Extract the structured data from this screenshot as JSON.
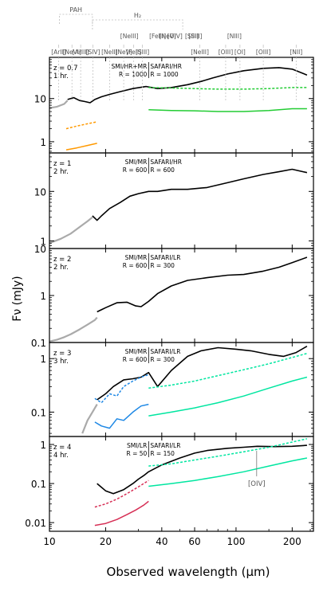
{
  "chart_data": {
    "type": "line",
    "xlabel": "Observed wavelength (μm)",
    "ylabel": "Fν (mJy)",
    "xscale": "log",
    "xlim": [
      10,
      260
    ],
    "xticks": [
      {
        "v": 10,
        "label": "10"
      },
      {
        "v": 20,
        "label": "20"
      },
      {
        "v": 40,
        "label": "40"
      },
      {
        "v": 60,
        "label": "60"
      },
      {
        "v": 100,
        "label": "100"
      },
      {
        "v": 200,
        "label": "200"
      }
    ],
    "lines_header": {
      "groups": [
        {
          "label": "PAH",
          "lines_um": [
            11.3,
            12.7,
            16.4,
            17.0
          ]
        },
        {
          "label": "H₂",
          "lines_um": [
            28.2,
            17.0,
            34.8,
            35.3,
            51.8
          ]
        }
      ],
      "row1": [
        {
          "label": "[ArII]",
          "um": 11.2
        },
        {
          "label": "[NeVI]",
          "um": 13.2
        },
        {
          "label": "[ArIII]",
          "um": 14.7
        },
        {
          "label": "[SIV]",
          "um": 17.1
        },
        {
          "label": "[NeII]",
          "um": 21.0
        },
        {
          "label": "[NeV]",
          "um": 25.0
        },
        {
          "label": "[FeII]",
          "um": 28.3
        },
        {
          "label": "[SIII]",
          "um": 31.5
        },
        {
          "label": "[NeIII]",
          "um": 64.0
        },
        {
          "label": "[OIII]",
          "um": 88.0
        },
        {
          "label": "[OI]",
          "um": 105.0
        },
        {
          "label": "[OIII]",
          "um": 140.0
        },
        {
          "label": "[NII]",
          "um": 210.0
        }
      ],
      "row2": [
        {
          "label": "[NeIII]",
          "um": 26.8
        },
        {
          "label": "[FeIII]",
          "um": 38.0
        },
        {
          "label": "[NeV]",
          "um": 43.0
        },
        {
          "label": "[OIV]",
          "um": 47.0
        },
        {
          "label": "[SIII]",
          "um": 58.0
        },
        {
          "label": "[SiII]",
          "um": 60.5
        },
        {
          "label": "[NIII]",
          "um": 98.0
        }
      ]
    },
    "panels": [
      {
        "z_label": "z = 0.7",
        "time_label": "1 hr.",
        "inst_left": "SMI/HR+MR",
        "inst_right": "SAFARI/HR",
        "res_left": "R = 1000",
        "res_right": "R = 1000",
        "ylim": [
          0.55,
          90
        ],
        "yticks": [
          {
            "v": 1,
            "label": "1"
          },
          {
            "v": 10,
            "label": "10"
          }
        ],
        "series": [
          {
            "role": "model",
            "color": "#aaaaaa",
            "style": "solid",
            "x": [
              10,
              11,
              12,
              12.5
            ],
            "y": [
              6.0,
              6.5,
              7.5,
              9.0
            ]
          },
          {
            "role": "spectrum",
            "color": "#000000",
            "style": "solid",
            "x": [
              12.5,
              13.5,
              14.5,
              15.5,
              16.5,
              17.5,
              19,
              21,
              24,
              28,
              33,
              38,
              45,
              55,
              65,
              75,
              90,
              110,
              140,
              170,
              200,
              240
            ],
            "y": [
              9.5,
              10.5,
              9.0,
              8.5,
              8.0,
              9.5,
              11,
              12.5,
              14.5,
              17,
              19,
              17,
              18,
              21,
              25,
              30,
              37,
              44,
              50,
              52,
              48,
              35
            ]
          },
          {
            "role": "sensitivity",
            "color": "#ff9900",
            "style": "dashed",
            "x": [
              12.3,
              14,
              16,
              18
            ],
            "y": [
              2.0,
              2.3,
              2.6,
              2.9
            ]
          },
          {
            "role": "sensitivity",
            "color": "#ff9900",
            "style": "solid",
            "x": [
              12.3,
              14,
              16,
              18
            ],
            "y": [
              0.65,
              0.72,
              0.82,
              0.92
            ]
          },
          {
            "role": "sensitivity",
            "color": "#22cc33",
            "style": "dashed",
            "x": [
              34,
              45,
              60,
              80,
              110,
              150,
              200,
              240
            ],
            "y": [
              18,
              17.5,
              17,
              16.5,
              16.5,
              17,
              18,
              18
            ]
          },
          {
            "role": "sensitivity",
            "color": "#22cc33",
            "style": "solid",
            "x": [
              34,
              45,
              60,
              80,
              110,
              150,
              200,
              240
            ],
            "y": [
              5.5,
              5.3,
              5.2,
              5.0,
              5.0,
              5.3,
              5.8,
              5.8
            ]
          }
        ]
      },
      {
        "z_label": "z = 1",
        "time_label": "2 hr.",
        "inst_left": "SMI/MR",
        "inst_right": "SAFARI/HR",
        "res_left": "R = 600",
        "res_right": "R = 600",
        "ylim": [
          0.7,
          60
        ],
        "yticks": [
          {
            "v": 1,
            "label": "1"
          },
          {
            "v": 10,
            "label": "10"
          }
        ],
        "series": [
          {
            "role": "model",
            "color": "#aaaaaa",
            "style": "solid",
            "x": [
              10,
              11.5,
              13,
              14.5,
              16,
              17
            ],
            "y": [
              0.9,
              1.1,
              1.4,
              1.9,
              2.5,
              3.0
            ]
          },
          {
            "role": "spectrum",
            "color": "#000000",
            "style": "solid",
            "x": [
              17,
              18,
              19,
              21,
              24,
              27,
              30,
              34,
              38,
              45,
              55,
              70,
              90,
              110,
              140,
              170,
              200,
              240
            ],
            "y": [
              3.2,
              2.6,
              3.2,
              4.5,
              6,
              8,
              9,
              10,
              10,
              11,
              11,
              12,
              15,
              18,
              22,
              25,
              28,
              24
            ]
          }
        ]
      },
      {
        "z_label": "z = 2",
        "time_label": "2 hr.",
        "inst_left": "SMI/MR",
        "inst_right": "SAFARI/LR",
        "res_left": "R = 600",
        "res_right": "R = 300",
        "ylim": [
          0.1,
          10
        ],
        "yticks": [
          {
            "v": 0.1,
            "label": "0.1"
          },
          {
            "v": 1,
            "label": "1"
          },
          {
            "v": 10,
            "label": "10"
          }
        ],
        "series": [
          {
            "role": "model",
            "color": "#aaaaaa",
            "style": "solid",
            "x": [
              10,
              11,
              12,
              13,
              14.5,
              16,
              17.5,
              18
            ],
            "y": [
              0.105,
              0.115,
              0.13,
              0.15,
              0.19,
              0.24,
              0.3,
              0.34
            ]
          },
          {
            "role": "spectrum",
            "color": "#000000",
            "style": "solid",
            "x": [
              18,
              20,
              23,
              26,
              29,
              31,
              34,
              38,
              45,
              55,
              70,
              90,
              110,
              140,
              170,
              200,
              240
            ],
            "y": [
              0.45,
              0.55,
              0.7,
              0.72,
              0.6,
              0.58,
              0.75,
              1.1,
              1.6,
              2.1,
              2.4,
              2.7,
              2.8,
              3.3,
              4.0,
              5.0,
              6.5
            ]
          }
        ]
      },
      {
        "z_label": "z = 3",
        "time_label": "3 hr.",
        "inst_left": "SMI/MR",
        "inst_right": "SAFARI/LR",
        "res_left": "R = 600",
        "res_right": "R = 300",
        "ylim": [
          0.035,
          2
        ],
        "yticks": [
          {
            "v": 0.1,
            "label": "0.1"
          },
          {
            "v": 1,
            "label": "1"
          }
        ],
        "series": [
          {
            "role": "model",
            "color": "#aaaaaa",
            "style": "solid",
            "x": [
              15,
              16,
              17,
              18
            ],
            "y": [
              0.04,
              0.07,
              0.1,
              0.14
            ]
          },
          {
            "role": "spectrum",
            "color": "#000000",
            "style": "solid",
            "x": [
              18,
              20,
              22,
              25,
              28,
              31,
              34,
              38,
              45,
              55,
              65,
              80,
              100,
              120,
              150,
              180,
              210,
              240
            ],
            "y": [
              0.17,
              0.22,
              0.3,
              0.4,
              0.42,
              0.45,
              0.55,
              0.3,
              0.6,
              1.1,
              1.4,
              1.6,
              1.5,
              1.4,
              1.2,
              1.1,
              1.3,
              1.7
            ]
          },
          {
            "role": "sensitivity",
            "color": "#1e88e5",
            "style": "dashed",
            "x": [
              17.5,
              19,
              21,
              23,
              25,
              28,
              31,
              34
            ],
            "y": [
              0.18,
              0.15,
              0.22,
              0.2,
              0.3,
              0.38,
              0.45,
              0.5
            ]
          },
          {
            "role": "sensitivity",
            "color": "#1e88e5",
            "style": "solid",
            "x": [
              17.5,
              19,
              21,
              23,
              25,
              28,
              31,
              34
            ],
            "y": [
              0.065,
              0.055,
              0.05,
              0.075,
              0.07,
              0.1,
              0.13,
              0.14
            ]
          },
          {
            "role": "sensitivity",
            "color": "#00e6a0",
            "style": "dashed",
            "x": [
              34,
              45,
              60,
              80,
              110,
              150,
              200,
              240
            ],
            "y": [
              0.28,
              0.32,
              0.38,
              0.48,
              0.62,
              0.8,
              1.05,
              1.25
            ]
          },
          {
            "role": "sensitivity",
            "color": "#00e6a0",
            "style": "solid",
            "x": [
              34,
              45,
              60,
              80,
              110,
              150,
              200,
              240
            ],
            "y": [
              0.085,
              0.1,
              0.12,
              0.15,
              0.2,
              0.28,
              0.38,
              0.45
            ]
          }
        ]
      },
      {
        "z_label": "z = 4",
        "time_label": "4 hr.",
        "inst_left": "SMI/LR",
        "inst_right": "SAFARI/LR",
        "res_left": "R = 50",
        "res_right": "R = 150",
        "ylim": [
          0.006,
          1.6
        ],
        "yticks": [
          {
            "v": 0.01,
            "label": "0.01"
          },
          {
            "v": 0.1,
            "label": "0.1"
          },
          {
            "v": 1,
            "label": "1"
          }
        ],
        "annotation": {
          "label": "[OIV]",
          "um": 129
        },
        "series": [
          {
            "role": "spectrum",
            "color": "#000000",
            "style": "solid",
            "x": [
              18,
              20,
              22,
              25,
              28,
              30,
              32,
              34,
              40,
              50,
              60,
              70,
              90,
              110,
              130,
              160,
              200,
              240
            ],
            "y": [
              0.1,
              0.065,
              0.055,
              0.07,
              0.1,
              0.13,
              0.16,
              0.2,
              0.3,
              0.45,
              0.6,
              0.7,
              0.8,
              0.85,
              0.9,
              0.88,
              0.9,
              0.95
            ]
          },
          {
            "role": "sensitivity",
            "color": "#d62f55",
            "style": "dashed",
            "x": [
              17.5,
              20,
              23,
              26,
              29,
              32,
              34
            ],
            "y": [
              0.025,
              0.03,
              0.04,
              0.055,
              0.075,
              0.1,
              0.12
            ]
          },
          {
            "role": "sensitivity",
            "color": "#d62f55",
            "style": "solid",
            "x": [
              17.5,
              20,
              23,
              26,
              29,
              32,
              34
            ],
            "y": [
              0.0085,
              0.0095,
              0.012,
              0.016,
              0.021,
              0.028,
              0.035
            ]
          },
          {
            "role": "sensitivity",
            "color": "#00e6a0",
            "style": "dashed",
            "x": [
              34,
              45,
              60,
              80,
              110,
              150,
              200,
              240
            ],
            "y": [
              0.28,
              0.32,
              0.4,
              0.5,
              0.65,
              0.85,
              1.15,
              1.4
            ]
          },
          {
            "role": "sensitivity",
            "color": "#00e6a0",
            "style": "solid",
            "x": [
              34,
              45,
              60,
              80,
              110,
              150,
              200,
              240
            ],
            "y": [
              0.085,
              0.1,
              0.12,
              0.15,
              0.2,
              0.28,
              0.38,
              0.45
            ]
          }
        ]
      }
    ]
  }
}
